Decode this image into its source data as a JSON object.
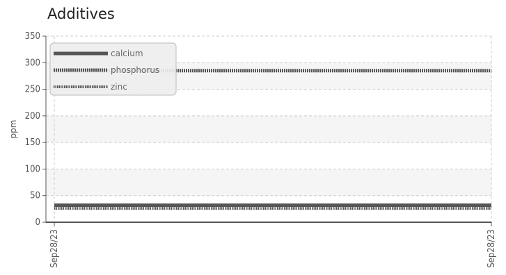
{
  "chart_data": {
    "type": "line",
    "title": "Additives",
    "xlabel": "",
    "ylabel": "ppm",
    "categories": [
      "Sep28/23",
      "Sep28/23"
    ],
    "ylim": [
      0,
      350
    ],
    "yticks": [
      0,
      50,
      100,
      150,
      200,
      250,
      300,
      350
    ],
    "grid": true,
    "legend_position": "top-left",
    "series": [
      {
        "name": "calcium",
        "values": [
          32,
          32
        ],
        "color": "#555555",
        "style": "solid"
      },
      {
        "name": "phosphorus",
        "values": [
          285,
          285
        ],
        "color": "#555555",
        "style": "dotted"
      },
      {
        "name": "zinc",
        "values": [
          26,
          26
        ],
        "color": "#555555",
        "style": "dotted-thin"
      }
    ]
  }
}
